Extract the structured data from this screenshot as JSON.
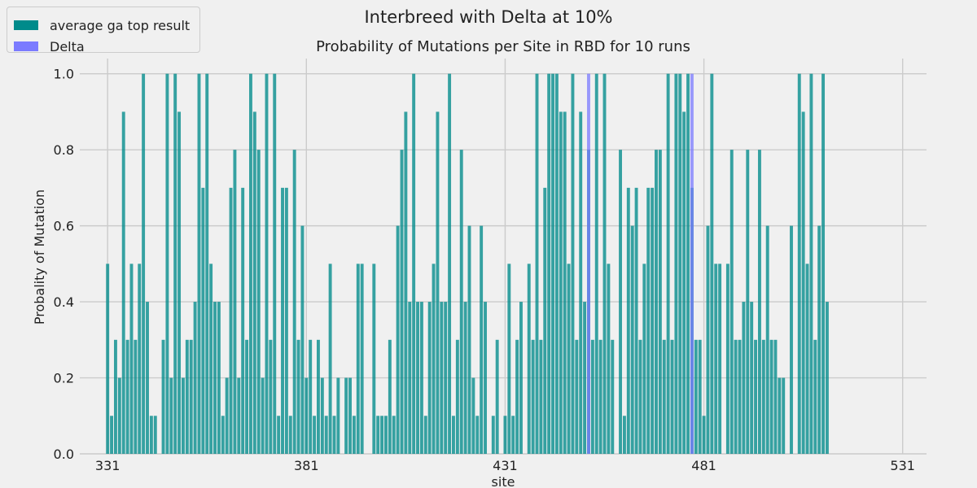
{
  "figure": {
    "suptitle": "Interbreed with Delta at 10%"
  },
  "legend": {
    "placement": "top-left",
    "items": [
      {
        "label": "average ga top result",
        "color": "#008b8b"
      },
      {
        "label": "Delta",
        "color": "#7b7bff"
      }
    ]
  },
  "chart_data": {
    "type": "bar",
    "title": "Probability of Mutations per Site in RBD for 10 runs",
    "xlabel": "site",
    "ylabel": "Probality of Mutation",
    "xlim": [
      324,
      537
    ],
    "ylim": [
      0,
      1.04
    ],
    "xticks": [
      "331",
      "381",
      "431",
      "481",
      "531"
    ],
    "yticks": [
      "0.0",
      "0.2",
      "0.4",
      "0.6",
      "0.8",
      "1.0"
    ],
    "grid": true,
    "x_start": 331,
    "series": [
      {
        "name": "average ga top result",
        "color": "#008b8b",
        "values": [
          0.5,
          0.1,
          0.3,
          0.2,
          0.9,
          0.3,
          0.5,
          0.3,
          0.5,
          1.0,
          0.4,
          0.1,
          0.1,
          0.0,
          0.3,
          1.0,
          0.2,
          1.0,
          0.9,
          0.2,
          0.3,
          0.3,
          0.4,
          1.0,
          0.7,
          1.0,
          0.5,
          0.4,
          0.4,
          0.1,
          0.2,
          0.7,
          0.8,
          0.2,
          0.7,
          0.3,
          1.0,
          0.9,
          0.8,
          0.2,
          1.0,
          0.3,
          1.0,
          0.1,
          0.7,
          0.7,
          0.1,
          0.8,
          0.3,
          0.6,
          0.2,
          0.3,
          0.1,
          0.3,
          0.2,
          0.1,
          0.5,
          0.1,
          0.2,
          0.0,
          0.2,
          0.2,
          0.1,
          0.5,
          0.5,
          0.0,
          0.0,
          0.5,
          0.1,
          0.1,
          0.1,
          0.3,
          0.1,
          0.6,
          0.8,
          0.9,
          0.4,
          1.0,
          0.4,
          0.4,
          0.1,
          0.4,
          0.5,
          0.9,
          0.4,
          0.4,
          1.0,
          0.1,
          0.3,
          0.8,
          0.4,
          0.6,
          0.2,
          0.1,
          0.6,
          0.4,
          0.0,
          0.1,
          0.3,
          0.0,
          0.1,
          0.5,
          0.1,
          0.3,
          0.4,
          0.0,
          0.5,
          0.3,
          1.0,
          0.3,
          0.7,
          1.0,
          1.0,
          1.0,
          0.9,
          0.9,
          0.5,
          1.0,
          0.3,
          0.9,
          0.4,
          0.8,
          0.3,
          1.0,
          0.3,
          1.0,
          0.5,
          0.3,
          0.0,
          0.8,
          0.1,
          0.7,
          0.6,
          0.7,
          0.3,
          0.5,
          0.7,
          0.7,
          0.8,
          0.8,
          0.3,
          1.0,
          0.3,
          1.0,
          1.0,
          0.9,
          1.0,
          0.7,
          0.3,
          0.3,
          0.1,
          0.6,
          1.0,
          0.5,
          0.5,
          0.0,
          0.5,
          0.8,
          0.3,
          0.3,
          0.4,
          0.8,
          0.4,
          0.3,
          0.8,
          0.3,
          0.6,
          0.3,
          0.3,
          0.2,
          0.2,
          0.0,
          0.6,
          0.0,
          1.0,
          0.9,
          0.5,
          1.0,
          0.3,
          0.6,
          1.0,
          0.4
        ]
      },
      {
        "name": "Delta",
        "color": "#7b7bff",
        "sites": [
          452,
          478
        ],
        "values": [
          1.0,
          1.0
        ]
      }
    ]
  }
}
